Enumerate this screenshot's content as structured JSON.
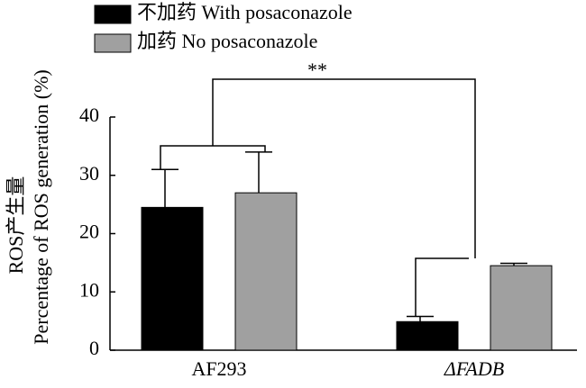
{
  "chart_data": {
    "type": "bar",
    "ylabel": [
      "ROS产生量",
      "Percentage of  ROS generation (%)"
    ],
    "categories": [
      "AF293",
      "ΔFADB"
    ],
    "series": [
      {
        "name": "不加药 With posaconazole",
        "color": "#000000",
        "values": [
          24.5,
          4.9
        ],
        "errors": [
          6.5,
          0.9
        ]
      },
      {
        "name": "加药 No posaconazole",
        "color": "#a0a0a0",
        "values": [
          27,
          14.5
        ],
        "errors": [
          7,
          0.4
        ]
      }
    ],
    "annotation": "**",
    "ylim": [
      0,
      40
    ],
    "yticks": [
      0,
      10,
      20,
      30,
      40
    ],
    "grid": false,
    "legend": "top-left"
  }
}
